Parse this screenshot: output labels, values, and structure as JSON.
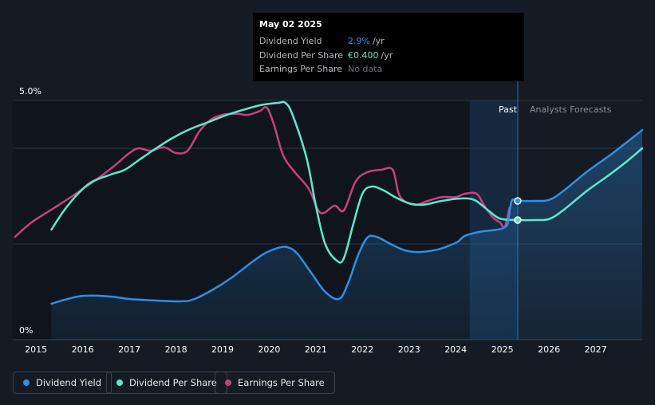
{
  "chart_data": {
    "type": "line",
    "y_ticks": [
      "5.0%",
      "0%"
    ],
    "ylim": [
      0,
      5.0
    ],
    "x_ticks": [
      "2015",
      "2016",
      "2017",
      "2018",
      "2019",
      "2020",
      "2021",
      "2022",
      "2023",
      "2024",
      "2025",
      "2026",
      "2027"
    ],
    "xlim": [
      2014.5,
      2028.0
    ],
    "past_label": "Past",
    "forecast_label": "Analysts Forecasts",
    "forecast_start": 2025.33,
    "series": [
      {
        "name": "Dividend Yield",
        "color": "#2d8fe6",
        "area": true,
        "points": [
          [
            2015.33,
            0.75
          ],
          [
            2015.6,
            0.83
          ],
          [
            2015.9,
            0.9
          ],
          [
            2016.2,
            0.92
          ],
          [
            2016.6,
            0.9
          ],
          [
            2017.0,
            0.85
          ],
          [
            2017.5,
            0.82
          ],
          [
            2018.1,
            0.8
          ],
          [
            2018.4,
            0.85
          ],
          [
            2018.8,
            1.05
          ],
          [
            2019.2,
            1.3
          ],
          [
            2019.6,
            1.6
          ],
          [
            2019.9,
            1.8
          ],
          [
            2020.2,
            1.92
          ],
          [
            2020.4,
            1.93
          ],
          [
            2020.6,
            1.8
          ],
          [
            2020.9,
            1.4
          ],
          [
            2021.2,
            1.0
          ],
          [
            2021.5,
            0.85
          ],
          [
            2021.7,
            1.2
          ],
          [
            2021.9,
            1.75
          ],
          [
            2022.1,
            2.13
          ],
          [
            2022.3,
            2.15
          ],
          [
            2022.6,
            2.0
          ],
          [
            2022.9,
            1.87
          ],
          [
            2023.2,
            1.83
          ],
          [
            2023.6,
            1.88
          ],
          [
            2023.9,
            1.98
          ],
          [
            2024.05,
            2.05
          ],
          [
            2024.2,
            2.17
          ],
          [
            2024.5,
            2.25
          ],
          [
            2024.9,
            2.3
          ],
          [
            2025.05,
            2.35
          ],
          [
            2025.12,
            2.45
          ],
          [
            2025.2,
            2.9
          ],
          [
            2025.33,
            2.9
          ],
          [
            2025.7,
            2.9
          ],
          [
            2026.0,
            2.92
          ],
          [
            2026.3,
            3.1
          ],
          [
            2026.8,
            3.5
          ],
          [
            2027.3,
            3.85
          ],
          [
            2027.7,
            4.15
          ],
          [
            2028.0,
            4.38
          ]
        ]
      },
      {
        "name": "Dividend Per Share",
        "color": "#5ce8cf",
        "area": false,
        "points": [
          [
            2015.33,
            2.3
          ],
          [
            2015.6,
            2.7
          ],
          [
            2015.9,
            3.05
          ],
          [
            2016.2,
            3.3
          ],
          [
            2016.6,
            3.45
          ],
          [
            2016.9,
            3.55
          ],
          [
            2017.2,
            3.75
          ],
          [
            2017.5,
            3.95
          ],
          [
            2017.9,
            4.2
          ],
          [
            2018.3,
            4.4
          ],
          [
            2018.7,
            4.55
          ],
          [
            2019.1,
            4.7
          ],
          [
            2019.5,
            4.82
          ],
          [
            2019.8,
            4.9
          ],
          [
            2020.0,
            4.93
          ],
          [
            2020.2,
            4.95
          ],
          [
            2020.35,
            4.95
          ],
          [
            2020.5,
            4.7
          ],
          [
            2020.8,
            3.8
          ],
          [
            2021.0,
            2.8
          ],
          [
            2021.2,
            2.0
          ],
          [
            2021.45,
            1.65
          ],
          [
            2021.6,
            1.7
          ],
          [
            2021.8,
            2.4
          ],
          [
            2022.0,
            3.05
          ],
          [
            2022.2,
            3.2
          ],
          [
            2022.45,
            3.12
          ],
          [
            2022.7,
            2.98
          ],
          [
            2023.0,
            2.85
          ],
          [
            2023.3,
            2.82
          ],
          [
            2023.7,
            2.9
          ],
          [
            2024.1,
            2.95
          ],
          [
            2024.4,
            2.92
          ],
          [
            2024.7,
            2.7
          ],
          [
            2024.95,
            2.53
          ],
          [
            2025.33,
            2.5
          ],
          [
            2025.7,
            2.5
          ],
          [
            2026.0,
            2.52
          ],
          [
            2026.3,
            2.7
          ],
          [
            2026.8,
            3.1
          ],
          [
            2027.3,
            3.45
          ],
          [
            2027.7,
            3.75
          ],
          [
            2028.0,
            4.0
          ]
        ]
      },
      {
        "name": "Earnings Per Share",
        "color": "#c9407f",
        "area": false,
        "points": [
          [
            2014.55,
            2.15
          ],
          [
            2014.9,
            2.45
          ],
          [
            2015.3,
            2.7
          ],
          [
            2015.7,
            2.95
          ],
          [
            2016.0,
            3.15
          ],
          [
            2016.3,
            3.35
          ],
          [
            2016.7,
            3.65
          ],
          [
            2017.0,
            3.9
          ],
          [
            2017.2,
            4.0
          ],
          [
            2017.45,
            3.95
          ],
          [
            2017.75,
            4.02
          ],
          [
            2018.0,
            3.9
          ],
          [
            2018.25,
            3.95
          ],
          [
            2018.5,
            4.35
          ],
          [
            2018.75,
            4.6
          ],
          [
            2019.0,
            4.7
          ],
          [
            2019.3,
            4.72
          ],
          [
            2019.55,
            4.7
          ],
          [
            2019.8,
            4.78
          ],
          [
            2019.95,
            4.85
          ],
          [
            2020.1,
            4.5
          ],
          [
            2020.3,
            3.85
          ],
          [
            2020.55,
            3.5
          ],
          [
            2020.85,
            3.15
          ],
          [
            2021.1,
            2.65
          ],
          [
            2021.4,
            2.8
          ],
          [
            2021.6,
            2.7
          ],
          [
            2021.85,
            3.3
          ],
          [
            2022.1,
            3.5
          ],
          [
            2022.4,
            3.55
          ],
          [
            2022.65,
            3.55
          ],
          [
            2022.8,
            3.0
          ],
          [
            2023.1,
            2.82
          ],
          [
            2023.4,
            2.9
          ],
          [
            2023.7,
            2.98
          ],
          [
            2024.0,
            2.98
          ],
          [
            2024.2,
            3.05
          ],
          [
            2024.45,
            3.05
          ],
          [
            2024.6,
            2.82
          ],
          [
            2024.8,
            2.55
          ],
          [
            2024.95,
            2.45
          ],
          [
            2025.05,
            2.35
          ],
          [
            2025.15,
            2.75
          ]
        ]
      }
    ],
    "tooltip": {
      "date": "May 02 2025",
      "rows": [
        {
          "label": "Dividend Yield",
          "value": "2.9%",
          "unit": "/yr",
          "color": "#2d8fe6"
        },
        {
          "label": "Dividend Per Share",
          "value": "€0.400",
          "unit": "/yr",
          "color": "#5ce8cf"
        },
        {
          "label": "Earnings Per Share",
          "value": "No data",
          "unit": "",
          "color": "#6b7079"
        }
      ]
    }
  },
  "legend": [
    {
      "label": "Dividend Yield",
      "color": "#2d8fe6"
    },
    {
      "label": "Dividend Per Share",
      "color": "#5ce8cf"
    },
    {
      "label": "Earnings Per Share",
      "color": "#c9407f"
    }
  ]
}
